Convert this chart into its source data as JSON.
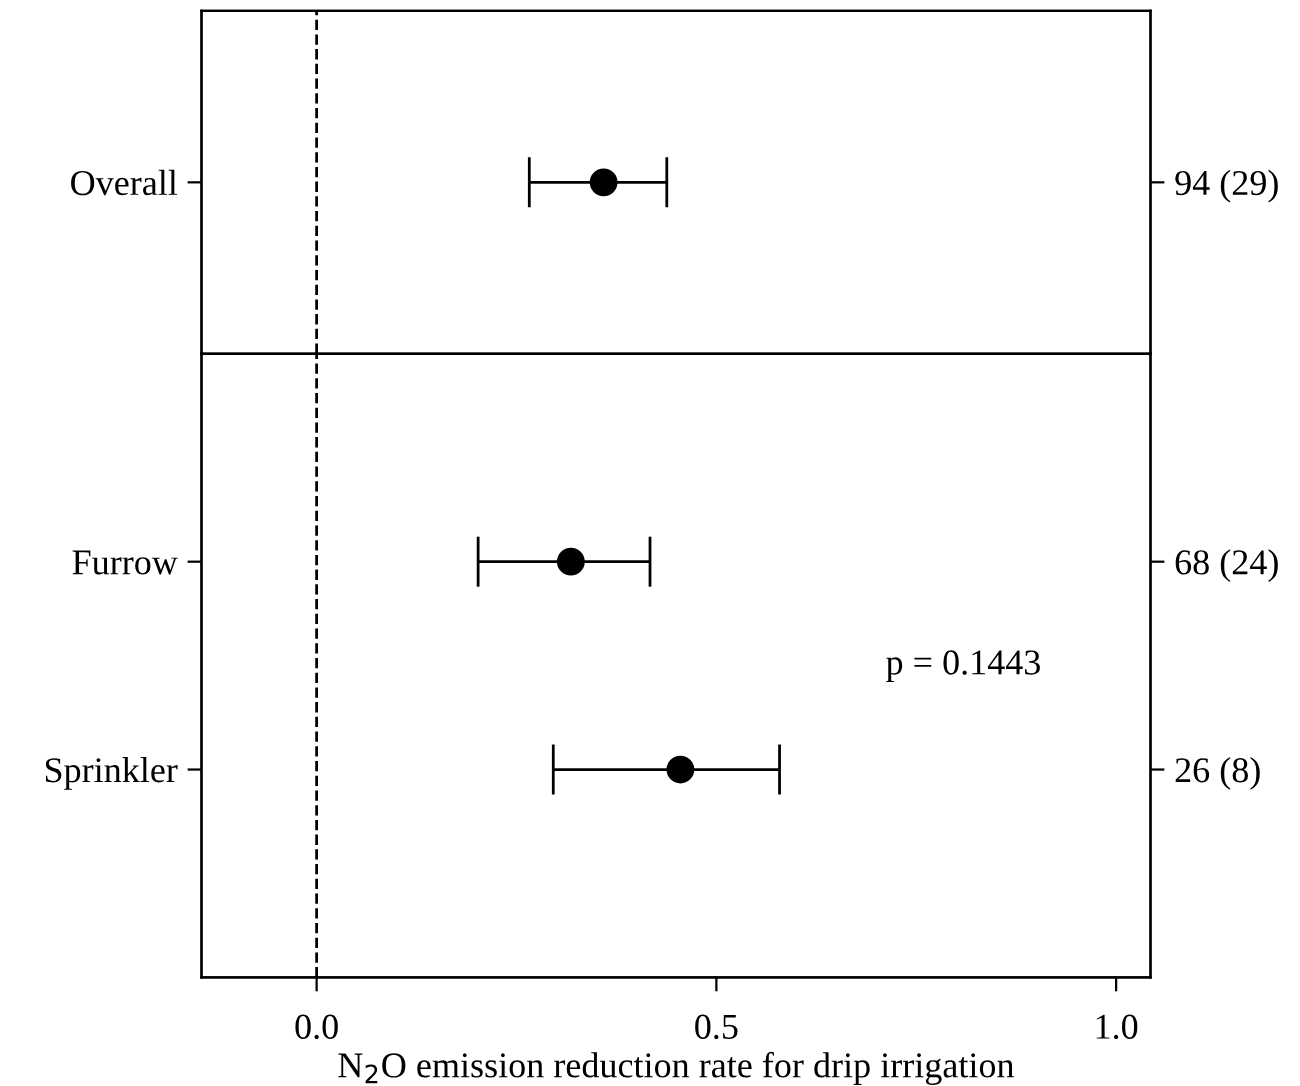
{
  "chart_data": [
    {
      "type": "scatter",
      "orientation": "horizontal",
      "categories": [
        "Overall"
      ],
      "series": [
        {
          "color": "#000000",
          "values": [
            0.359
          ],
          "errors": [
            [
              0.266,
              0.438
            ]
          ]
        }
      ],
      "xlim": [
        -0.144,
        1.043
      ],
      "tick_labels": "y",
      "marker": "circle",
      "ref_lines": [
        {
          "axis": "x",
          "value": 0,
          "line_style": "dashed",
          "color": "#000000"
        }
      ],
      "annotations": [
        "94 (29)"
      ]
    },
    {
      "type": "scatter",
      "orientation": "horizontal",
      "categories": [
        "Furrow",
        "Sprinkler"
      ],
      "series": [
        {
          "color": "#000000",
          "values": [
            0.318,
            0.455
          ],
          "errors": [
            [
              0.202,
              0.417
            ],
            [
              0.296,
              0.579
            ]
          ]
        }
      ],
      "xlim": [
        -0.144,
        1.043
      ],
      "xticks": [
        {
          "value": 0.0,
          "label": "0.0"
        },
        0.5,
        {
          "value": 1.0,
          "label": "1.0"
        }
      ],
      "xlabel": "N$_{2}$O emission reduction rate for drip irrigation",
      "marker": "circle",
      "ref_lines": [
        {
          "axis": "x",
          "value": 0,
          "line_style": "dashed",
          "color": "#000000"
        }
      ],
      "annotations": [
        "68 (24)",
        "26 (8)",
        "p = 0.1443"
      ]
    }
  ]
}
